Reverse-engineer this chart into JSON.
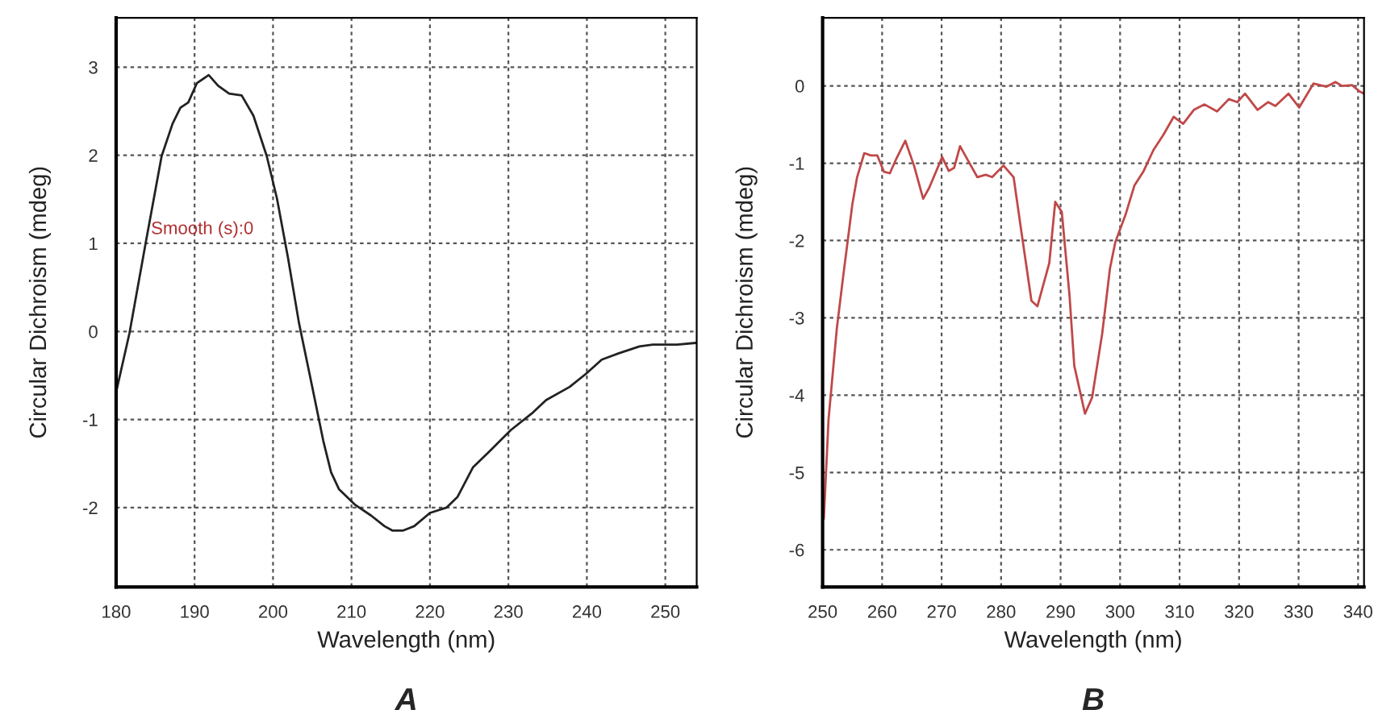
{
  "chart_data": [
    {
      "type": "line",
      "title": "A",
      "xlabel": "Wavelength (nm)",
      "ylabel": "Circular Dichroism (mdeg)",
      "xlim": [
        180,
        254
      ],
      "xticks": [
        180,
        190,
        200,
        210,
        220,
        230,
        240,
        250
      ],
      "ylim": [
        -2.9,
        3.56
      ],
      "yticks": [
        -2,
        -1,
        0,
        1,
        2,
        3
      ],
      "grid": true,
      "marker": "none",
      "line_style": "solid",
      "annotations": [
        "Smooth (s):0"
      ],
      "series": [
        {
          "color": "#222222",
          "x": [
            180,
            181.7,
            183.8,
            185.8,
            187.2,
            188.2,
            189.2,
            190.3,
            191.8,
            193.0,
            194.4,
            196.0,
            197.5,
            199.2,
            200.5,
            201.9,
            203.3,
            205.0,
            206.4,
            207.4,
            208.4,
            210.5,
            212.5,
            214.2,
            215.2,
            216.6,
            218.0,
            220.0,
            222.1,
            223.5,
            225.5,
            227.6,
            230.3,
            233.0,
            234.8,
            237.8,
            239.9,
            241.9,
            244.0,
            246.7,
            248.4,
            251.5,
            253.9
          ],
          "values": [
            -0.69,
            -0.02,
            1.02,
            1.99,
            2.36,
            2.54,
            2.6,
            2.82,
            2.91,
            2.79,
            2.7,
            2.68,
            2.45,
            1.99,
            1.51,
            0.84,
            0.1,
            -0.63,
            -1.24,
            -1.6,
            -1.79,
            -1.97,
            -2.09,
            -2.21,
            -2.26,
            -2.26,
            -2.21,
            -2.06,
            -2.0,
            -1.88,
            -1.54,
            -1.36,
            -1.12,
            -0.93,
            -0.78,
            -0.63,
            -0.48,
            -0.32,
            -0.25,
            -0.17,
            -0.15,
            -0.15,
            -0.13
          ]
        }
      ]
    },
    {
      "type": "line",
      "title": "B",
      "xlabel": "Wavelength (nm)",
      "ylabel": "Circular Dichroism (mdeg)",
      "xlim": [
        250,
        341
      ],
      "xticks": [
        250,
        260,
        270,
        280,
        290,
        300,
        310,
        320,
        330,
        340
      ],
      "ylim": [
        -6.48,
        0.88
      ],
      "yticks": [
        -6,
        -5,
        -4,
        -3,
        -2,
        -1,
        0
      ],
      "grid": true,
      "marker": "none",
      "line_style": "solid",
      "series": [
        {
          "color": "#c04848",
          "x": [
            250.2,
            251.0,
            252.4,
            253.4,
            255.0,
            255.8,
            257.0,
            258.1,
            259.2,
            260.3,
            261.3,
            262.4,
            263.9,
            265.4,
            266.9,
            267.9,
            270.1,
            271.2,
            272.1,
            273.1,
            274.4,
            276.0,
            277.4,
            278.5,
            280.4,
            282.1,
            283.4,
            285.1,
            286.1,
            288.1,
            289.1,
            290.2,
            291.5,
            292.3,
            294.1,
            295.3,
            297.0,
            298.3,
            299.2,
            300.9,
            302.4,
            303.9,
            305.6,
            307.3,
            309.0,
            310.6,
            312.4,
            314.2,
            316.3,
            318.3,
            319.7,
            321.0,
            323.1,
            324.9,
            326.1,
            328.3,
            330.1,
            332.5,
            334.7,
            336.2,
            337.3,
            339.0,
            340.2,
            341.0
          ],
          "values": [
            -5.6,
            -4.31,
            -3.13,
            -2.5,
            -1.53,
            -1.18,
            -0.87,
            -0.9,
            -0.9,
            -1.11,
            -1.13,
            -0.94,
            -0.71,
            -1.04,
            -1.46,
            -1.32,
            -0.92,
            -1.1,
            -1.06,
            -0.78,
            -0.96,
            -1.18,
            -1.15,
            -1.18,
            -1.03,
            -1.18,
            -1.88,
            -2.78,
            -2.85,
            -2.29,
            -1.5,
            -1.63,
            -2.71,
            -3.62,
            -4.24,
            -4.03,
            -3.2,
            -2.36,
            -2.02,
            -1.67,
            -1.29,
            -1.11,
            -0.83,
            -0.63,
            -0.4,
            -0.49,
            -0.31,
            -0.24,
            -0.33,
            -0.17,
            -0.21,
            -0.1,
            -0.31,
            -0.21,
            -0.26,
            -0.1,
            -0.28,
            0.03,
            -0.01,
            0.05,
            0.0,
            0.01,
            -0.07,
            -0.1
          ]
        }
      ]
    }
  ]
}
